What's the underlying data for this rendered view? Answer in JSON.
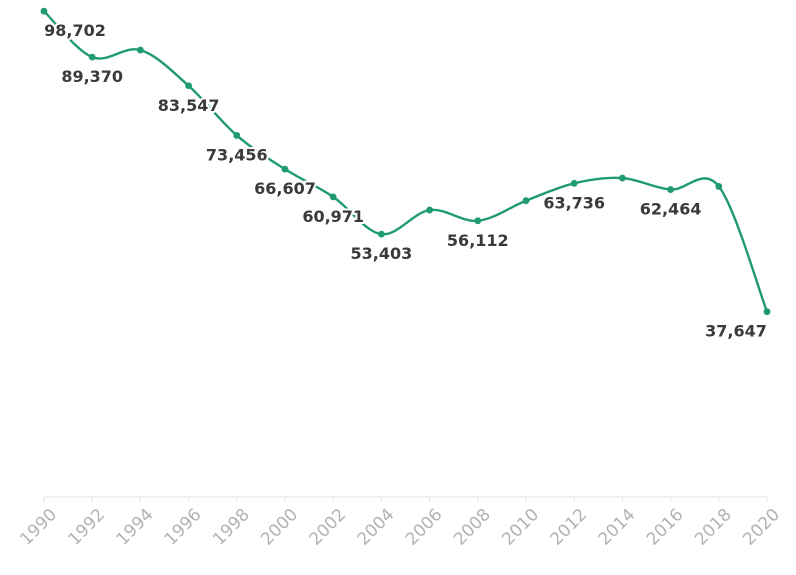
{
  "chart_data": {
    "type": "line",
    "title": "",
    "xlabel": "",
    "ylabel": "",
    "x": [
      1990,
      1992,
      1994,
      1996,
      1998,
      2000,
      2002,
      2004,
      2006,
      2008,
      2010,
      2012,
      2014,
      2016,
      2018,
      2020
    ],
    "series": [
      {
        "values": [
          98702,
          89370,
          90800,
          83547,
          73456,
          66607,
          60971,
          53403,
          58300,
          56112,
          60200,
          63736,
          64800,
          62464,
          63100,
          37647
        ],
        "labeled_values": [
          "98,702",
          "89,370",
          null,
          "83,547",
          "73,456",
          "66,607",
          "60,971",
          "53,403",
          null,
          "56,112",
          null,
          "63,736",
          null,
          "62,464",
          null,
          "37,647"
        ],
        "label_positions": [
          "below",
          "below",
          null,
          "below",
          "below",
          "below",
          "below",
          "below",
          null,
          "below",
          null,
          "below",
          null,
          "below",
          null,
          "below"
        ]
      }
    ],
    "ylim": [
      0,
      100000
    ],
    "grid": false,
    "legend": "none",
    "colors": {
      "line": "#1f9a73",
      "label": "#3a3a3a",
      "tick": "#b3b3b3",
      "axis": "#e3e3e3"
    }
  }
}
